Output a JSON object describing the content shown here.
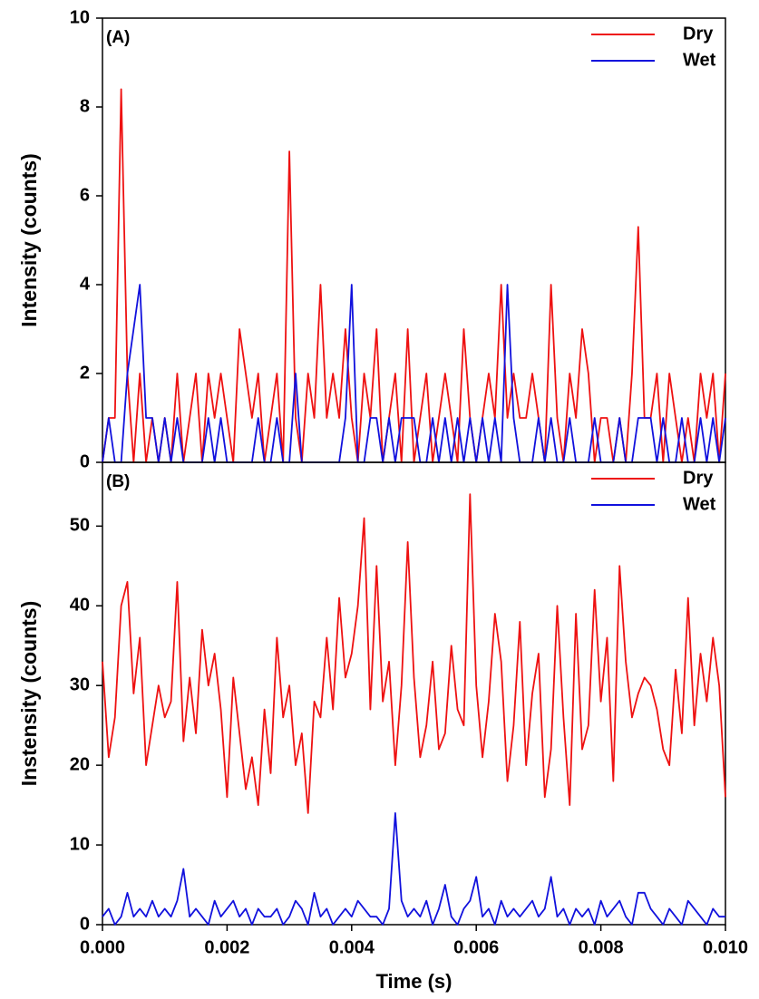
{
  "chart_data": [
    {
      "type": "line",
      "title": "(A)",
      "y_label": "Intensity (counts)",
      "x": [
        0,
        0.0001,
        0.0002,
        0.0003,
        0.0004,
        0.0005,
        0.0006,
        0.0007,
        0.0008,
        0.0009,
        0.001,
        0.0011,
        0.0012,
        0.0013,
        0.0014,
        0.0015,
        0.0016,
        0.0017,
        0.0018,
        0.0019,
        0.002,
        0.0021,
        0.0022,
        0.0023,
        0.0024,
        0.0025,
        0.0026,
        0.0027,
        0.0028,
        0.0029,
        0.003,
        0.0031,
        0.0032,
        0.0033,
        0.0034,
        0.0035,
        0.0036,
        0.0037,
        0.0038,
        0.0039,
        0.004,
        0.0041,
        0.0042,
        0.0043,
        0.0044,
        0.0045,
        0.0046,
        0.0047,
        0.0048,
        0.0049,
        0.005,
        0.0051,
        0.0052,
        0.0053,
        0.0054,
        0.0055,
        0.0056,
        0.0057,
        0.0058,
        0.0059,
        0.006,
        0.0061,
        0.0062,
        0.0063,
        0.0064,
        0.0065,
        0.0066,
        0.0067,
        0.0068,
        0.0069,
        0.007,
        0.0071,
        0.0072,
        0.0073,
        0.0074,
        0.0075,
        0.0076,
        0.0077,
        0.0078,
        0.0079,
        0.008,
        0.0081,
        0.0082,
        0.0083,
        0.0084,
        0.0085,
        0.0086,
        0.0087,
        0.0088,
        0.0089,
        0.009,
        0.0091,
        0.0092,
        0.0093,
        0.0094,
        0.0095,
        0.0096,
        0.0097,
        0.0098,
        0.0099,
        0.01
      ],
      "series": [
        {
          "name": "Dry",
          "color": "#ee1111",
          "values": [
            0,
            1,
            1,
            8.4,
            2,
            0,
            2,
            0,
            1,
            0,
            1,
            0,
            2,
            0,
            1,
            2,
            0,
            2,
            1,
            2,
            1,
            0,
            3,
            2,
            1,
            2,
            0,
            1,
            2,
            0,
            7,
            1,
            0,
            2,
            1,
            4,
            1,
            2,
            1,
            3,
            1,
            0,
            2,
            1,
            3,
            0,
            1,
            2,
            0,
            3,
            0,
            1,
            2,
            0,
            1,
            2,
            1,
            0,
            3,
            1,
            0,
            1,
            2,
            1,
            4,
            1,
            2,
            1,
            1,
            2,
            1,
            0,
            4,
            1,
            0,
            2,
            1,
            3,
            2,
            0,
            1,
            1,
            0,
            1,
            0,
            2,
            5.3,
            1,
            1,
            2,
            0,
            2,
            1,
            0,
            1,
            0,
            2,
            1,
            2,
            0,
            2
          ]
        },
        {
          "name": "Wet",
          "color": "#1111dd",
          "values": [
            0,
            1,
            0,
            0,
            2,
            3,
            4,
            1,
            1,
            0,
            1,
            0,
            1,
            0,
            0,
            0,
            0,
            1,
            0,
            1,
            0,
            0,
            0,
            0,
            0,
            1,
            0,
            0,
            1,
            0,
            0,
            2,
            0,
            0,
            0,
            0,
            0,
            0,
            0,
            1,
            4,
            0,
            0,
            1,
            1,
            0,
            1,
            0,
            1,
            1,
            1,
            0,
            0,
            1,
            0,
            1,
            0,
            1,
            0,
            1,
            0,
            1,
            0,
            1,
            0,
            4,
            1,
            0,
            0,
            0,
            1,
            0,
            1,
            0,
            0,
            1,
            0,
            0,
            0,
            1,
            0,
            0,
            0,
            1,
            0,
            0,
            1,
            1,
            1,
            0,
            1,
            0,
            0,
            1,
            0,
            0,
            1,
            0,
            1,
            0,
            1
          ]
        }
      ],
      "xlim": [
        0,
        0.01
      ],
      "ylim": [
        0,
        10
      ],
      "yticks": [
        0,
        2,
        4,
        6,
        8,
        10
      ],
      "legend": "upper right"
    },
    {
      "type": "line",
      "title": "(B)",
      "y_label": "Instensity (counts)",
      "x_label": "Time (s)",
      "x": [
        0,
        0.0001,
        0.0002,
        0.0003,
        0.0004,
        0.0005,
        0.0006,
        0.0007,
        0.0008,
        0.0009,
        0.001,
        0.0011,
        0.0012,
        0.0013,
        0.0014,
        0.0015,
        0.0016,
        0.0017,
        0.0018,
        0.0019,
        0.002,
        0.0021,
        0.0022,
        0.0023,
        0.0024,
        0.0025,
        0.0026,
        0.0027,
        0.0028,
        0.0029,
        0.003,
        0.0031,
        0.0032,
        0.0033,
        0.0034,
        0.0035,
        0.0036,
        0.0037,
        0.0038,
        0.0039,
        0.004,
        0.0041,
        0.0042,
        0.0043,
        0.0044,
        0.0045,
        0.0046,
        0.0047,
        0.0048,
        0.0049,
        0.005,
        0.0051,
        0.0052,
        0.0053,
        0.0054,
        0.0055,
        0.0056,
        0.0057,
        0.0058,
        0.0059,
        0.006,
        0.0061,
        0.0062,
        0.0063,
        0.0064,
        0.0065,
        0.0066,
        0.0067,
        0.0068,
        0.0069,
        0.007,
        0.0071,
        0.0072,
        0.0073,
        0.0074,
        0.0075,
        0.0076,
        0.0077,
        0.0078,
        0.0079,
        0.008,
        0.0081,
        0.0082,
        0.0083,
        0.0084,
        0.0085,
        0.0086,
        0.0087,
        0.0088,
        0.0089,
        0.009,
        0.0091,
        0.0092,
        0.0093,
        0.0094,
        0.0095,
        0.0096,
        0.0097,
        0.0098,
        0.0099,
        0.01
      ],
      "series": [
        {
          "name": "Dry",
          "color": "#ee1111",
          "values": [
            33,
            21,
            26,
            40,
            43,
            29,
            36,
            20,
            25,
            30,
            26,
            28,
            43,
            23,
            31,
            24,
            37,
            30,
            34,
            27,
            16,
            31,
            24,
            17,
            21,
            15,
            27,
            19,
            36,
            26,
            30,
            20,
            24,
            14,
            28,
            26,
            36,
            27,
            41,
            31,
            34,
            40,
            51,
            27,
            45,
            28,
            33,
            20,
            30,
            48,
            31,
            21,
            25,
            33,
            22,
            24,
            35,
            27,
            25,
            54,
            30,
            21,
            28,
            39,
            33,
            18,
            25,
            38,
            20,
            29,
            34,
            16,
            22,
            40,
            26,
            15,
            39,
            22,
            25,
            42,
            28,
            36,
            18,
            45,
            33,
            26,
            29,
            31,
            30,
            27,
            22,
            20,
            32,
            24,
            41,
            25,
            34,
            28,
            36,
            30,
            16
          ]
        },
        {
          "name": "Wet",
          "color": "#1111dd",
          "values": [
            1,
            2,
            0,
            1,
            4,
            1,
            2,
            1,
            3,
            1,
            2,
            1,
            3,
            7,
            1,
            2,
            1,
            0,
            3,
            1,
            2,
            3,
            1,
            2,
            0,
            2,
            1,
            1,
            2,
            0,
            1,
            3,
            2,
            0,
            4,
            1,
            2,
            0,
            1,
            2,
            1,
            3,
            2,
            1,
            1,
            0,
            2,
            14,
            3,
            1,
            2,
            1,
            3,
            0,
            2,
            5,
            1,
            0,
            2,
            3,
            6,
            1,
            2,
            0,
            3,
            1,
            2,
            1,
            2,
            3,
            1,
            2,
            6,
            1,
            2,
            0,
            2,
            1,
            2,
            0,
            3,
            1,
            2,
            3,
            1,
            0,
            4,
            4,
            2,
            1,
            0,
            2,
            1,
            0,
            3,
            2,
            1,
            0,
            2,
            1,
            1
          ]
        }
      ],
      "xlim": [
        0,
        0.01
      ],
      "xticks": [
        {
          "value": 0,
          "label": "0.000"
        },
        {
          "value": 0.002,
          "label": "0.002"
        },
        {
          "value": 0.004,
          "label": "0.004"
        },
        {
          "value": 0.006,
          "label": "0.006"
        },
        {
          "value": 0.008,
          "label": "0.008"
        },
        {
          "value": 0.01,
          "label": "0.010"
        }
      ],
      "ylim": [
        0,
        58
      ],
      "yticks": [
        0,
        10,
        20,
        30,
        40,
        50
      ],
      "legend": "upper right"
    }
  ]
}
